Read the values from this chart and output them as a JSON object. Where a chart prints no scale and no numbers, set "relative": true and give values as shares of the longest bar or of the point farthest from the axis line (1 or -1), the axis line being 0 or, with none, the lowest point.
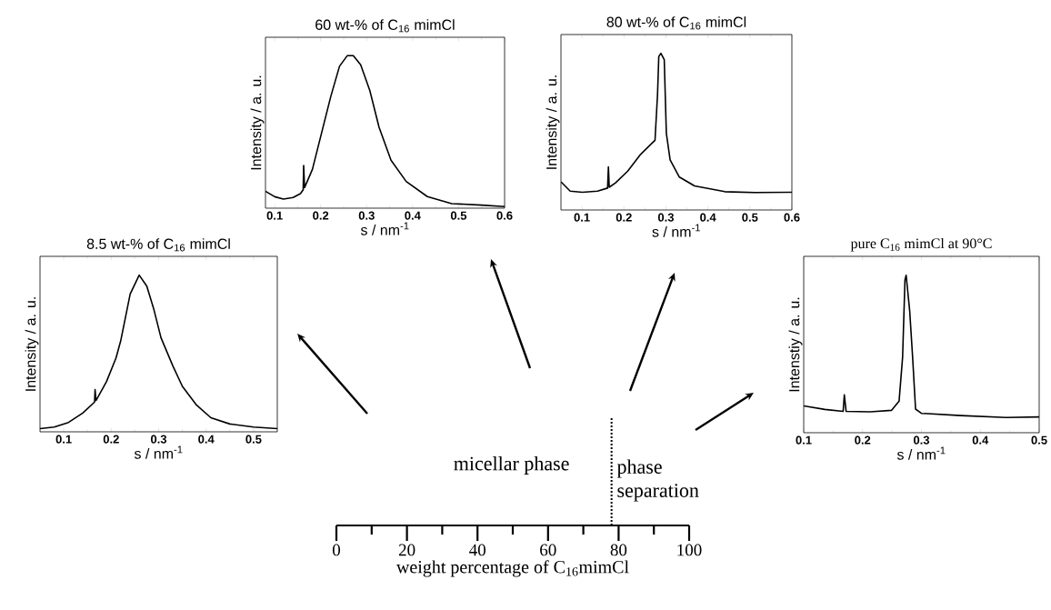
{
  "chart_data": [
    {
      "type": "line",
      "title": "60 wt-% of C$_{16}$ mimCl",
      "xlabel": "s / nm$^{-1}$",
      "ylabel": "Intensity / a. u.",
      "relative": true,
      "color": "#000000",
      "xlim": [
        0.08,
        0.6
      ],
      "xticks": [
        0.1,
        0.2,
        0.3,
        0.4,
        0.5,
        0.6
      ],
      "x": [
        0.08,
        0.1,
        0.119,
        0.14,
        0.156,
        0.162,
        0.163,
        0.165,
        0.182,
        0.202,
        0.222,
        0.241,
        0.258,
        0.271,
        0.287,
        0.307,
        0.327,
        0.353,
        0.386,
        0.432,
        0.485,
        0.55,
        0.6
      ],
      "values": [
        0.111,
        0.075,
        0.06,
        0.07,
        0.095,
        0.12,
        0.28,
        0.135,
        0.254,
        0.493,
        0.732,
        0.93,
        1.0,
        1.0,
        0.94,
        0.77,
        0.53,
        0.314,
        0.175,
        0.076,
        0.03,
        0.02,
        0.01
      ]
    },
    {
      "type": "line",
      "title": "80 wt-% of C$_{16}$ mimCl",
      "xlabel": "s / nm$^{-1}$",
      "ylabel": "Intensity / a. u.",
      "relative": true,
      "color": "#000000",
      "xlim": [
        0.05,
        0.6
      ],
      "xticks": [
        0.1,
        0.2,
        0.3,
        0.4,
        0.5,
        0.6
      ],
      "x": [
        0.05,
        0.072,
        0.101,
        0.137,
        0.161,
        0.163,
        0.165,
        0.18,
        0.209,
        0.238,
        0.267,
        0.274,
        0.28,
        0.283,
        0.288,
        0.296,
        0.301,
        0.31,
        0.332,
        0.368,
        0.44,
        0.512,
        0.6
      ],
      "values": [
        0.18,
        0.12,
        0.113,
        0.12,
        0.14,
        0.276,
        0.145,
        0.173,
        0.248,
        0.35,
        0.427,
        0.445,
        0.737,
        0.98,
        1.0,
        0.96,
        0.49,
        0.32,
        0.21,
        0.154,
        0.117,
        0.111,
        0.113
      ]
    },
    {
      "type": "line",
      "title": "8.5 wt-% of C$_{16}$ mimCl",
      "xlabel": "s / nm$^{-1}$",
      "ylabel": "Intensity / a. u.",
      "relative": true,
      "color": "#000000",
      "xlim": [
        0.05,
        0.55
      ],
      "xticks": [
        0.1,
        0.2,
        0.3,
        0.4,
        0.5
      ],
      "x": [
        0.05,
        0.08,
        0.11,
        0.14,
        0.165,
        0.166,
        0.168,
        0.19,
        0.21,
        0.22,
        0.24,
        0.259,
        0.275,
        0.29,
        0.305,
        0.33,
        0.35,
        0.38,
        0.41,
        0.45,
        0.5,
        0.55
      ],
      "values": [
        0.02,
        0.03,
        0.06,
        0.12,
        0.19,
        0.27,
        0.2,
        0.32,
        0.47,
        0.58,
        0.88,
        1.0,
        0.93,
        0.78,
        0.6,
        0.42,
        0.29,
        0.17,
        0.09,
        0.05,
        0.03,
        0.02
      ]
    },
    {
      "type": "line",
      "title": "pure C$_{16}$ mimCl at 90°C",
      "xlabel": "s / nm$^{-1}$",
      "ylabel": "Intenstiy / a. u.",
      "relative": true,
      "color": "#000000",
      "xlim": [
        0.1,
        0.5
      ],
      "xticks": [
        0.1,
        0.2,
        0.3,
        0.4,
        0.5
      ],
      "x": [
        0.1,
        0.136,
        0.167,
        0.169,
        0.172,
        0.213,
        0.249,
        0.262,
        0.268,
        0.272,
        0.274,
        0.28,
        0.285,
        0.29,
        0.3,
        0.367,
        0.444,
        0.5
      ],
      "values": [
        0.17,
        0.148,
        0.136,
        0.24,
        0.136,
        0.133,
        0.142,
        0.2,
        0.48,
        0.97,
        1.0,
        0.776,
        0.48,
        0.15,
        0.123,
        0.109,
        0.097,
        0.1
      ]
    },
    {
      "type": "line",
      "xlabel": "weight percentage of C$_{16}$mimCl",
      "xlim": [
        0,
        100
      ],
      "xticks": [
        0,
        {
          "value": 10,
          "label": null
        },
        20,
        {
          "value": 30,
          "label": null
        },
        40,
        {
          "value": 50,
          "label": null
        },
        60,
        {
          "value": 70,
          "label": null
        },
        80,
        {
          "value": 90,
          "label": null
        },
        100
      ],
      "relative": true,
      "line_style": "dotted",
      "color": "#000000",
      "x": [
        78,
        78
      ],
      "values": [
        0,
        1
      ],
      "annotations": [
        "micellar phase",
        "phase separation"
      ]
    }
  ]
}
